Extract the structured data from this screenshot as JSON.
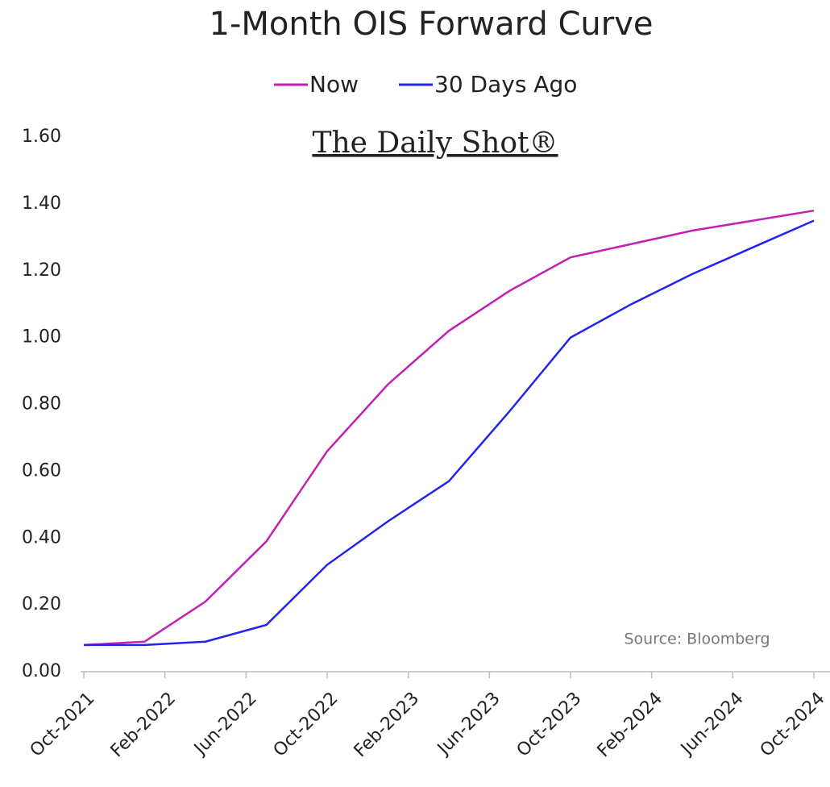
{
  "chart_data": {
    "type": "line",
    "title": "1-Month OIS Forward Curve",
    "watermark": "The Daily Shot®",
    "source": "Source: Bloomberg",
    "x": [
      "Oct-2021",
      "Jan-2022",
      "Apr-2022",
      "Jul-2022",
      "Oct-2022",
      "Jan-2023",
      "Apr-2023",
      "Jul-2023",
      "Oct-2023",
      "Jan-2024",
      "Apr-2024",
      "Jul-2024",
      "Oct-2024"
    ],
    "series": [
      {
        "name": "Now",
        "color": "#c21fb4",
        "values": [
          0.08,
          0.09,
          0.21,
          0.39,
          0.66,
          0.86,
          1.02,
          1.14,
          1.24,
          1.28,
          1.32,
          1.35,
          1.38
        ]
      },
      {
        "name": "30 Days Ago",
        "color": "#2323ee",
        "values": [
          0.08,
          0.08,
          0.09,
          0.14,
          0.32,
          0.45,
          0.57,
          0.78,
          1.0,
          1.1,
          1.19,
          1.27,
          1.35
        ]
      }
    ],
    "xlim": [
      "Oct-2021",
      "Oct-2024"
    ],
    "xticks": [
      "Oct-2021",
      "Feb-2022",
      "Jun-2022",
      "Oct-2022",
      "Feb-2023",
      "Jun-2023",
      "Oct-2023",
      "Feb-2024",
      "Jun-2024",
      "Oct-2024"
    ],
    "ylim": [
      0,
      1.6
    ],
    "yticks": [
      {
        "value": 0,
        "label": "0.00"
      },
      {
        "value": 0.2,
        "label": "0.20"
      },
      {
        "value": 0.4,
        "label": "0.40"
      },
      {
        "value": 0.6,
        "label": "0.60"
      },
      {
        "value": 0.8,
        "label": "0.80"
      },
      {
        "value": 1,
        "label": "1.00"
      },
      {
        "value": 1.2,
        "label": "1.20"
      },
      {
        "value": 1.4,
        "label": "1.40"
      },
      {
        "value": 1.6,
        "label": "1.60"
      }
    ],
    "legend": "top",
    "grid": false
  }
}
